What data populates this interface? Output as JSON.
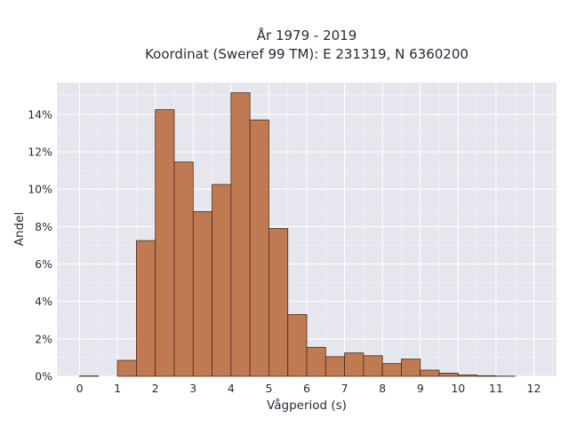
{
  "chart_data": {
    "type": "bar",
    "title_line1": "År 1979 - 2019",
    "title_line2": "Koordinat (Sweref 99 TM): E 231319, N 6360200",
    "xlabel": "Vågperiod (s)",
    "ylabel": "Andel",
    "xlim": [
      -0.6,
      12.6
    ],
    "ylim": [
      0,
      15.7
    ],
    "x_ticks": [
      0,
      1,
      2,
      3,
      4,
      5,
      6,
      7,
      8,
      9,
      10,
      11,
      12
    ],
    "x_tick_labels": [
      "0",
      "1",
      "2",
      "3",
      "4",
      "5",
      "6",
      "7",
      "8",
      "9",
      "10",
      "11",
      "12"
    ],
    "y_ticks": [
      0,
      2,
      4,
      6,
      8,
      10,
      12,
      14
    ],
    "y_tick_labels": [
      "0%",
      "2%",
      "4%",
      "6%",
      "8%",
      "10%",
      "12%",
      "14%"
    ],
    "bin_width": 0.5,
    "bins": [
      {
        "x0": 0.0,
        "value": 0.02
      },
      {
        "x0": 0.5,
        "value": 0.0
      },
      {
        "x0": 1.0,
        "value": 0.85
      },
      {
        "x0": 1.5,
        "value": 7.25
      },
      {
        "x0": 2.0,
        "value": 14.25
      },
      {
        "x0": 2.5,
        "value": 11.45
      },
      {
        "x0": 3.0,
        "value": 8.8
      },
      {
        "x0": 3.5,
        "value": 10.25
      },
      {
        "x0": 4.0,
        "value": 15.15
      },
      {
        "x0": 4.5,
        "value": 13.7
      },
      {
        "x0": 5.0,
        "value": 7.9
      },
      {
        "x0": 5.5,
        "value": 3.3
      },
      {
        "x0": 6.0,
        "value": 1.55
      },
      {
        "x0": 6.5,
        "value": 1.05
      },
      {
        "x0": 7.0,
        "value": 1.25
      },
      {
        "x0": 7.5,
        "value": 1.1
      },
      {
        "x0": 8.0,
        "value": 0.68
      },
      {
        "x0": 8.5,
        "value": 0.92
      },
      {
        "x0": 9.0,
        "value": 0.33
      },
      {
        "x0": 9.5,
        "value": 0.17
      },
      {
        "x0": 10.0,
        "value": 0.07
      },
      {
        "x0": 10.5,
        "value": 0.03
      },
      {
        "x0": 11.0,
        "value": 0.01
      },
      {
        "x0": 11.5,
        "value": 0.0
      }
    ],
    "grid": true,
    "colors": {
      "bar_fill": "#c07a52",
      "bar_stroke": "#4a2c1c",
      "plot_background": "#e6e6ee",
      "grid": "#ffffff"
    }
  }
}
